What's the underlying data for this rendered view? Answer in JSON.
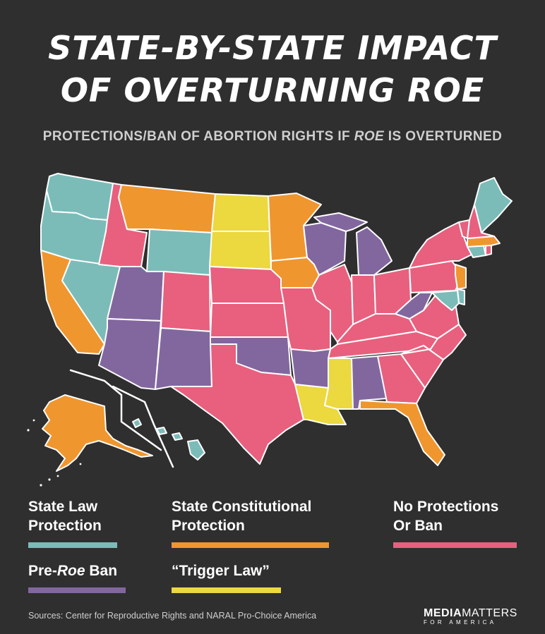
{
  "title": {
    "line1": "STATE-BY-STATE IMPACT",
    "line2": "OF OVERTURNING ROE"
  },
  "subtitle": {
    "before": "PROTECTIONS/BAN OF ABORTION RIGHTS IF ",
    "emph": "ROE",
    "after": " IS OVERTURNED"
  },
  "colors": {
    "state_law_protection": "#7bbcb9",
    "state_constitutional_protection": "#f0962e",
    "no_protections_or_ban": "#e8607e",
    "pre_roe_ban": "#82679f",
    "trigger_law": "#ecd83f",
    "border": "#ffffff",
    "background": "#2f2f2f"
  },
  "legend": {
    "state_law": {
      "line1": "State Law",
      "line2": "Protection"
    },
    "state_constitutional": {
      "line1": "State Constitutional",
      "line2": "Protection"
    },
    "no_protections": {
      "line1": "No Protections",
      "line2": "Or Ban"
    },
    "pre_roe": {
      "before": "Pre-",
      "emph": "Roe",
      "after": " Ban"
    },
    "trigger": {
      "text": "“Trigger Law”"
    }
  },
  "states": {
    "WA": "state_law_protection",
    "OR": "state_law_protection",
    "CA": "state_constitutional_protection",
    "NV": "state_law_protection",
    "ID": "no_protections_or_ban",
    "MT": "state_constitutional_protection",
    "WY": "state_law_protection",
    "UT": "pre_roe_ban",
    "AZ": "pre_roe_ban",
    "CO": "no_protections_or_ban",
    "NM": "pre_roe_ban",
    "ND": "trigger_law",
    "SD": "trigger_law",
    "NE": "no_protections_or_ban",
    "KS": "no_protections_or_ban",
    "OK": "pre_roe_ban",
    "TX": "no_protections_or_ban",
    "MN": "state_constitutional_protection",
    "IA": "state_constitutional_protection",
    "MO": "no_protections_or_ban",
    "AR": "pre_roe_ban",
    "LA": "trigger_law",
    "WI": "pre_roe_ban",
    "IL": "no_protections_or_ban",
    "MI": "pre_roe_ban",
    "IN": "no_protections_or_ban",
    "OH": "no_protections_or_ban",
    "KY": "no_protections_or_ban",
    "TN": "no_protections_or_ban",
    "MS": "trigger_law",
    "AL": "pre_roe_ban",
    "GA": "no_protections_or_ban",
    "FL": "state_constitutional_protection",
    "SC": "no_protections_or_ban",
    "NC": "no_protections_or_ban",
    "VA": "no_protections_or_ban",
    "WV": "pre_roe_ban",
    "PA": "no_protections_or_ban",
    "NY": "no_protections_or_ban",
    "NJ": "state_constitutional_protection",
    "DE": "state_law_protection",
    "MD": "state_law_protection",
    "CT": "state_law_protection",
    "RI": "no_protections_or_ban",
    "MA": "state_constitutional_protection",
    "VT": "no_protections_or_ban",
    "NH": "no_protections_or_ban",
    "ME": "state_law_protection",
    "AK": "state_constitutional_protection",
    "HI": "state_law_protection"
  },
  "source": "Sources: Center for Reproductive Rights and NARAL Pro-Choice America",
  "brand": {
    "bold": "MEDIA",
    "light": "MATTERS",
    "sub": "FOR AMERICA"
  }
}
